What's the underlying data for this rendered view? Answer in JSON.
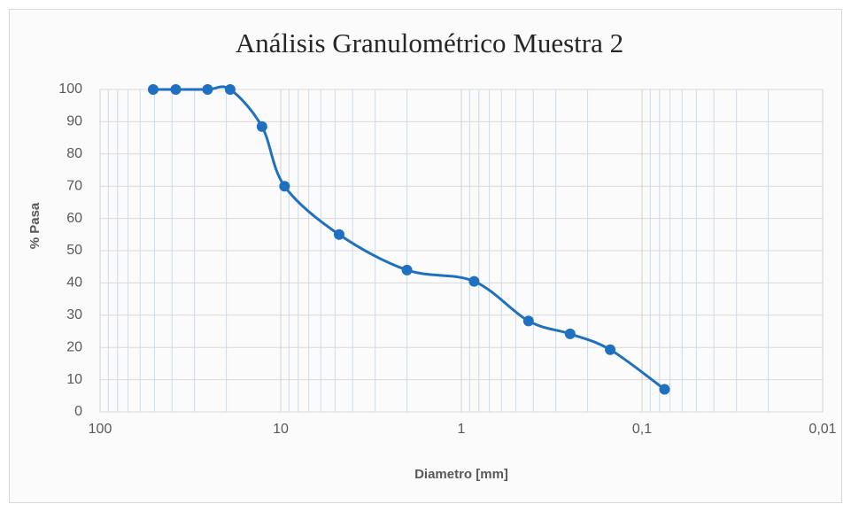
{
  "chart_data": {
    "type": "line",
    "title": "Análisis Granulométrico Muestra 2",
    "x_label": "Diametro [mm]",
    "y_label": "% Pasa",
    "x": [
      50.8,
      38.1,
      25.4,
      19.05,
      12.7,
      9.52,
      4.75,
      2.0,
      0.85,
      0.425,
      0.25,
      0.15,
      0.075
    ],
    "series": [
      {
        "name": "% Pasa",
        "color": "#1f70c1",
        "values": [
          100,
          100,
          100,
          100,
          88.5,
          70,
          55,
          44,
          40.5,
          28.2,
          24.2,
          19.3,
          7
        ]
      }
    ],
    "xlim": [
      100,
      0.01
    ],
    "x_log": true,
    "x_reversed": true,
    "xticks": [
      100,
      10,
      1,
      {
        "value": 0.1,
        "label": "0,1"
      },
      {
        "value": 0.01,
        "label": "0,01"
      }
    ],
    "ylim": [
      0,
      100
    ],
    "yticks": [
      0,
      10,
      20,
      30,
      40,
      50,
      60,
      70,
      80,
      90,
      100
    ],
    "grid": true,
    "minor_grid": true,
    "smooth": true
  }
}
